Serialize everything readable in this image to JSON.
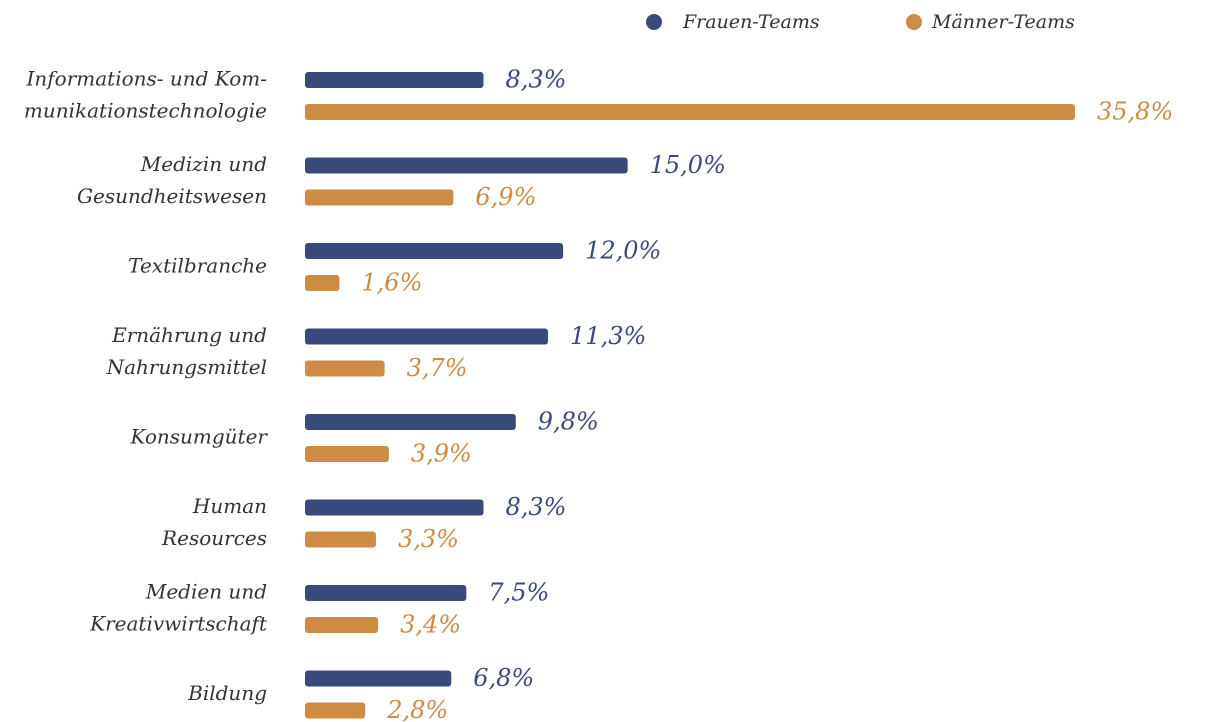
{
  "chart_data": {
    "type": "bar",
    "orientation": "horizontal",
    "categories": [
      [
        "Informations- und Kom-",
        "munikationstechnologie"
      ],
      [
        "Medizin und",
        "Gesundheitswesen"
      ],
      [
        "Textilbranche"
      ],
      [
        "Ernährung und",
        "Nahrungsmittel"
      ],
      [
        "Konsumgüter"
      ],
      [
        "Human",
        "Resources"
      ],
      [
        "Medien und",
        "Kreativwirtschaft"
      ],
      [
        "Bildung"
      ]
    ],
    "series": [
      {
        "name": "Frauen-Teams",
        "color": "#3b4a7c",
        "values": [
          8.3,
          15.0,
          12.0,
          11.3,
          9.8,
          8.3,
          7.5,
          6.8
        ],
        "value_labels": [
          "8,3%",
          "15,0%",
          "12,0%",
          "11,3%",
          "9,8%",
          "8,3%",
          "7,5%",
          "6,8%"
        ]
      },
      {
        "name": "Männer-Teams",
        "color": "#cd8b44",
        "values": [
          35.8,
          6.9,
          1.6,
          3.7,
          3.9,
          3.3,
          3.4,
          2.8
        ],
        "value_labels": [
          "35,8%",
          "6,9%",
          "1,6%",
          "3,7%",
          "3,9%",
          "3,3%",
          "3,4%",
          "2,8%"
        ]
      }
    ],
    "legend": "top"
  }
}
